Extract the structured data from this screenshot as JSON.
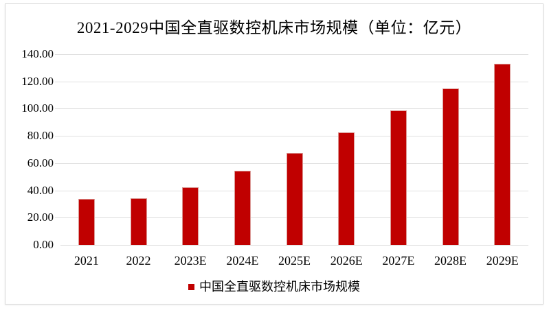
{
  "chart_data": {
    "type": "bar",
    "title": "2021-2029中国全直驱数控机床市场规模（单位：亿元）",
    "categories": [
      "2021",
      "2022",
      "2023E",
      "2024E",
      "2025E",
      "2026E",
      "2027E",
      "2028E",
      "2029E"
    ],
    "values": [
      33.6,
      34.3,
      42.4,
      54.4,
      67.7,
      82.8,
      98.7,
      115.0,
      132.9
    ],
    "xlabel": "",
    "ylabel": "",
    "ylim": [
      0,
      140
    ],
    "ytick_step": 20,
    "ytick_decimals": 2,
    "grid": true,
    "legend_position": "bottom",
    "legend_label": "中国全直驱数控机床市场规模",
    "colors": {
      "bar_fill": "#c00000",
      "bar_border": "#da9894",
      "gridline": "#e0e0e0",
      "axis_line": "#d9d9d9",
      "text": "#000000",
      "frame_border": "#d9d9d9"
    }
  }
}
